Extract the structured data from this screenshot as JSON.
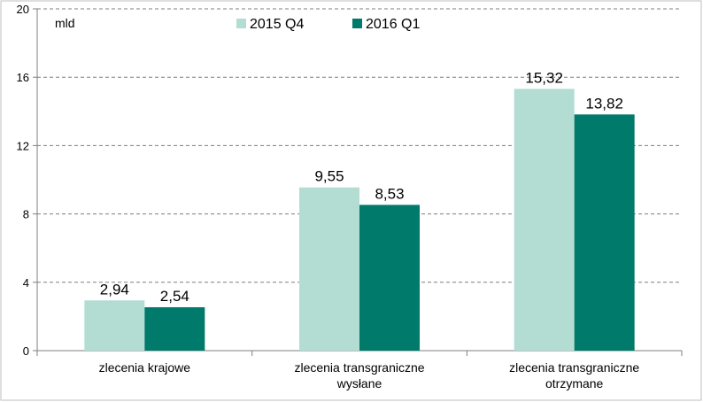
{
  "chart_data": {
    "type": "bar",
    "unit_label": "mld",
    "categories": [
      [
        "zlecenia krajowe"
      ],
      [
        "zlecenia transgraniczne",
        "wysłane"
      ],
      [
        "zlecenia transgraniczne",
        "otrzymane"
      ]
    ],
    "series": [
      {
        "name": "2015 Q4",
        "color": "#b3ddd3",
        "values": [
          2.94,
          9.55,
          15.32
        ],
        "labels": [
          "2,94",
          "9,55",
          "15,32"
        ]
      },
      {
        "name": "2016 Q1",
        "color": "#007a6b",
        "values": [
          2.54,
          8.53,
          13.82
        ],
        "labels": [
          "2,54",
          "8,53",
          "13,82"
        ]
      }
    ],
    "ylim": [
      0,
      20
    ],
    "yticks": [
      0,
      4,
      8,
      12,
      16,
      20
    ],
    "grid": true,
    "legend_position": "top-center"
  }
}
